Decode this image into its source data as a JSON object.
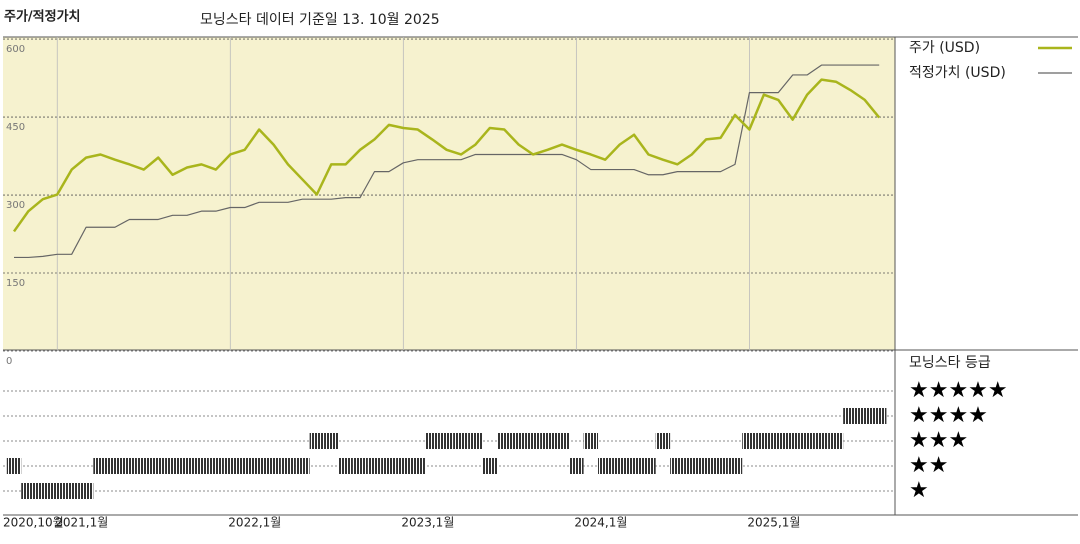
{
  "header": {
    "title": "주가/적정가치",
    "subtitle": "모닝스타 데이터 기준일 13. 10월 2025"
  },
  "chart_data": [
    {
      "type": "line",
      "categories": [
        "2020-10",
        "2020-11",
        "2020-12",
        "2021-01",
        "2021-02",
        "2021-03",
        "2021-04",
        "2021-05",
        "2021-06",
        "2021-07",
        "2021-08",
        "2021-09",
        "2021-10",
        "2021-11",
        "2021-12",
        "2022-01",
        "2022-02",
        "2022-03",
        "2022-04",
        "2022-05",
        "2022-06",
        "2022-07",
        "2022-08",
        "2022-09",
        "2022-10",
        "2022-11",
        "2022-12",
        "2023-01",
        "2023-02",
        "2023-03",
        "2023-04",
        "2023-05",
        "2023-06",
        "2023-07",
        "2023-08",
        "2023-09",
        "2023-10",
        "2023-11",
        "2023-12",
        "2024-01",
        "2024-02",
        "2024-03",
        "2024-04",
        "2024-05",
        "2024-06",
        "2024-07",
        "2024-08",
        "2024-09",
        "2024-10",
        "2024-11",
        "2024-12",
        "2025-01",
        "2025-02",
        "2025-03",
        "2025-04",
        "2025-05",
        "2025-06",
        "2025-07",
        "2025-08",
        "2025-09",
        "2025-10"
      ],
      "series": [
        {
          "name": "주가 (USD)",
          "color": "#a9b51c",
          "values": [
            230,
            269,
            292,
            301,
            349,
            372,
            378,
            368,
            359,
            349,
            372,
            339,
            353,
            359,
            349,
            378,
            387,
            426,
            397,
            359,
            330,
            301,
            359,
            359,
            387,
            407,
            435,
            429,
            426,
            407,
            387,
            378,
            397,
            429,
            426,
            397,
            378,
            387,
            397,
            387,
            378,
            368,
            397,
            416,
            378,
            368,
            359,
            378,
            407,
            410,
            454,
            426,
            493,
            483,
            445,
            493,
            522,
            518,
            502,
            483,
            449
          ]
        },
        {
          "name": "적정가치 (USD)",
          "color": "#666666",
          "values": [
            180,
            180,
            182,
            186,
            186,
            238,
            238,
            238,
            253,
            253,
            253,
            261,
            261,
            269,
            269,
            276,
            276,
            286,
            286,
            286,
            292,
            292,
            292,
            295,
            295,
            345,
            345,
            362,
            368,
            368,
            368,
            368,
            378,
            378,
            378,
            378,
            378,
            378,
            378,
            368,
            349,
            349,
            349,
            349,
            339,
            339,
            345,
            345,
            345,
            345,
            359,
            497,
            497,
            497,
            531,
            531,
            550,
            550,
            550,
            550,
            550
          ]
        }
      ],
      "ylim": [
        0,
        604
      ],
      "yticks": [
        0,
        150,
        300,
        450,
        600
      ],
      "xticks": [
        {
          "value": "2020-10",
          "label": "2020,10월"
        },
        {
          "value": "2021-01",
          "label": "2021,1월"
        },
        {
          "value": "2022-01",
          "label": "2022,1월"
        },
        {
          "value": "2023-01",
          "label": "2023,1월"
        },
        {
          "value": "2024-01",
          "label": "2024,1월"
        },
        {
          "value": "2025-01",
          "label": "2025,1월"
        }
      ],
      "background": "#f6f2cf",
      "grid": true
    },
    {
      "type": "rating",
      "title": "모닝스타 등급",
      "levels": [
        5,
        4,
        3,
        2,
        1
      ],
      "level_labels": [
        "★★★★★",
        "★★★★",
        "★★★",
        "★★",
        "★"
      ],
      "values": [
        2,
        1,
        1,
        1,
        1,
        1,
        2,
        2,
        2,
        2,
        2,
        2,
        2,
        2,
        2,
        2,
        2,
        2,
        2,
        2,
        2,
        3,
        3,
        2,
        2,
        2,
        2,
        2,
        2,
        3,
        3,
        3,
        3,
        2,
        3,
        3,
        3,
        3,
        3,
        2,
        3,
        2,
        2,
        2,
        2,
        3,
        2,
        2,
        2,
        2,
        2,
        3,
        3,
        3,
        3,
        3,
        3,
        3,
        4,
        4,
        4
      ],
      "color": "#333333"
    }
  ]
}
